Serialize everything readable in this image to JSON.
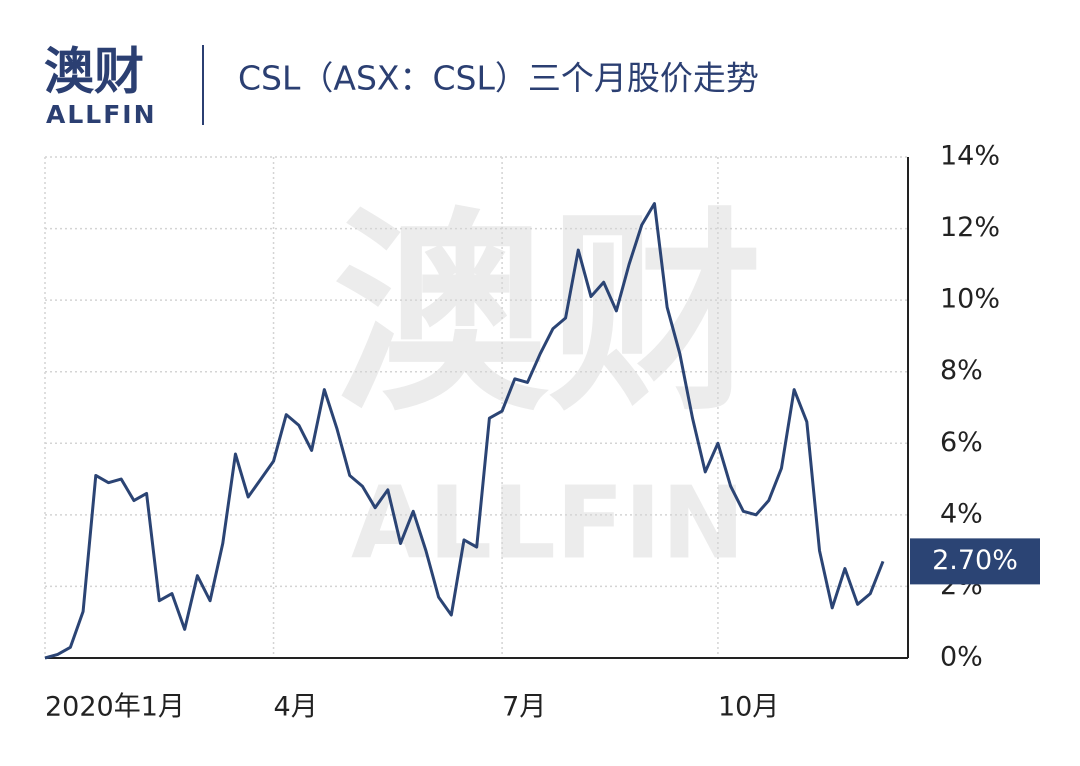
{
  "header": {
    "logo_cn": "澳财",
    "logo_en": "ALLFIN",
    "watermark_cn": "澳财",
    "watermark_en": "ALLFIN"
  },
  "chart_data": {
    "type": "line",
    "title": "CSL（ASX：CSL）三个月股价走势",
    "categories": [
      "2020年1月",
      null,
      null,
      null,
      null,
      null,
      null,
      null,
      null,
      null,
      null,
      null,
      null,
      null,
      null,
      null,
      null,
      null,
      "4月",
      null,
      null,
      null,
      null,
      null,
      null,
      null,
      null,
      null,
      null,
      null,
      null,
      null,
      null,
      null,
      null,
      null,
      "7月",
      null,
      null,
      null,
      null,
      null,
      null,
      null,
      null,
      null,
      null,
      null,
      null,
      null,
      null,
      null,
      null,
      "10月",
      null,
      null,
      null,
      null,
      null,
      null,
      null,
      null,
      null,
      null,
      null,
      null,
      null
    ],
    "series": [
      {
        "name": "CSL",
        "color": "#2b4474",
        "values": [
          0,
          0.1,
          0.3,
          1.3,
          5.1,
          4.9,
          5.0,
          4.4,
          4.6,
          1.6,
          1.8,
          0.8,
          2.3,
          1.6,
          3.2,
          5.7,
          4.5,
          5.0,
          5.5,
          6.8,
          6.5,
          5.8,
          7.5,
          6.4,
          5.1,
          4.8,
          4.2,
          4.7,
          3.2,
          4.1,
          3.0,
          1.7,
          1.2,
          3.3,
          3.1,
          6.7,
          6.9,
          7.8,
          7.7,
          8.5,
          9.2,
          9.5,
          11.4,
          10.1,
          10.5,
          9.7,
          11.0,
          12.1,
          12.7,
          9.8,
          8.5,
          6.7,
          5.2,
          6.0,
          4.8,
          4.1,
          4.0,
          4.4,
          5.3,
          7.5,
          6.6,
          3.0,
          1.4,
          2.5,
          1.5,
          1.8,
          2.7
        ],
        "value_labels": [
          null,
          null,
          null,
          null,
          null,
          null,
          null,
          null,
          null,
          null,
          null,
          null,
          null,
          null,
          null,
          null,
          null,
          null,
          null,
          null,
          null,
          null,
          null,
          null,
          null,
          null,
          null,
          null,
          null,
          null,
          null,
          null,
          null,
          null,
          null,
          null,
          null,
          null,
          null,
          null,
          null,
          null,
          null,
          null,
          null,
          null,
          null,
          null,
          null,
          null,
          null,
          null,
          null,
          null,
          null,
          null,
          null,
          null,
          null,
          null,
          null,
          null,
          null,
          null,
          null,
          null,
          "2.70%"
        ]
      }
    ],
    "ylim": [
      0,
      14
    ],
    "yticks": [
      {
        "value": 0,
        "label": "0%"
      },
      {
        "value": 2,
        "label": "2%"
      },
      {
        "value": 4,
        "label": "4%"
      },
      {
        "value": 6,
        "label": "6%"
      },
      {
        "value": 8,
        "label": "8%"
      },
      {
        "value": 10,
        "label": "10%"
      },
      {
        "value": 12,
        "label": "12%"
      },
      {
        "value": 14,
        "label": "14%"
      }
    ],
    "grid": true
  }
}
